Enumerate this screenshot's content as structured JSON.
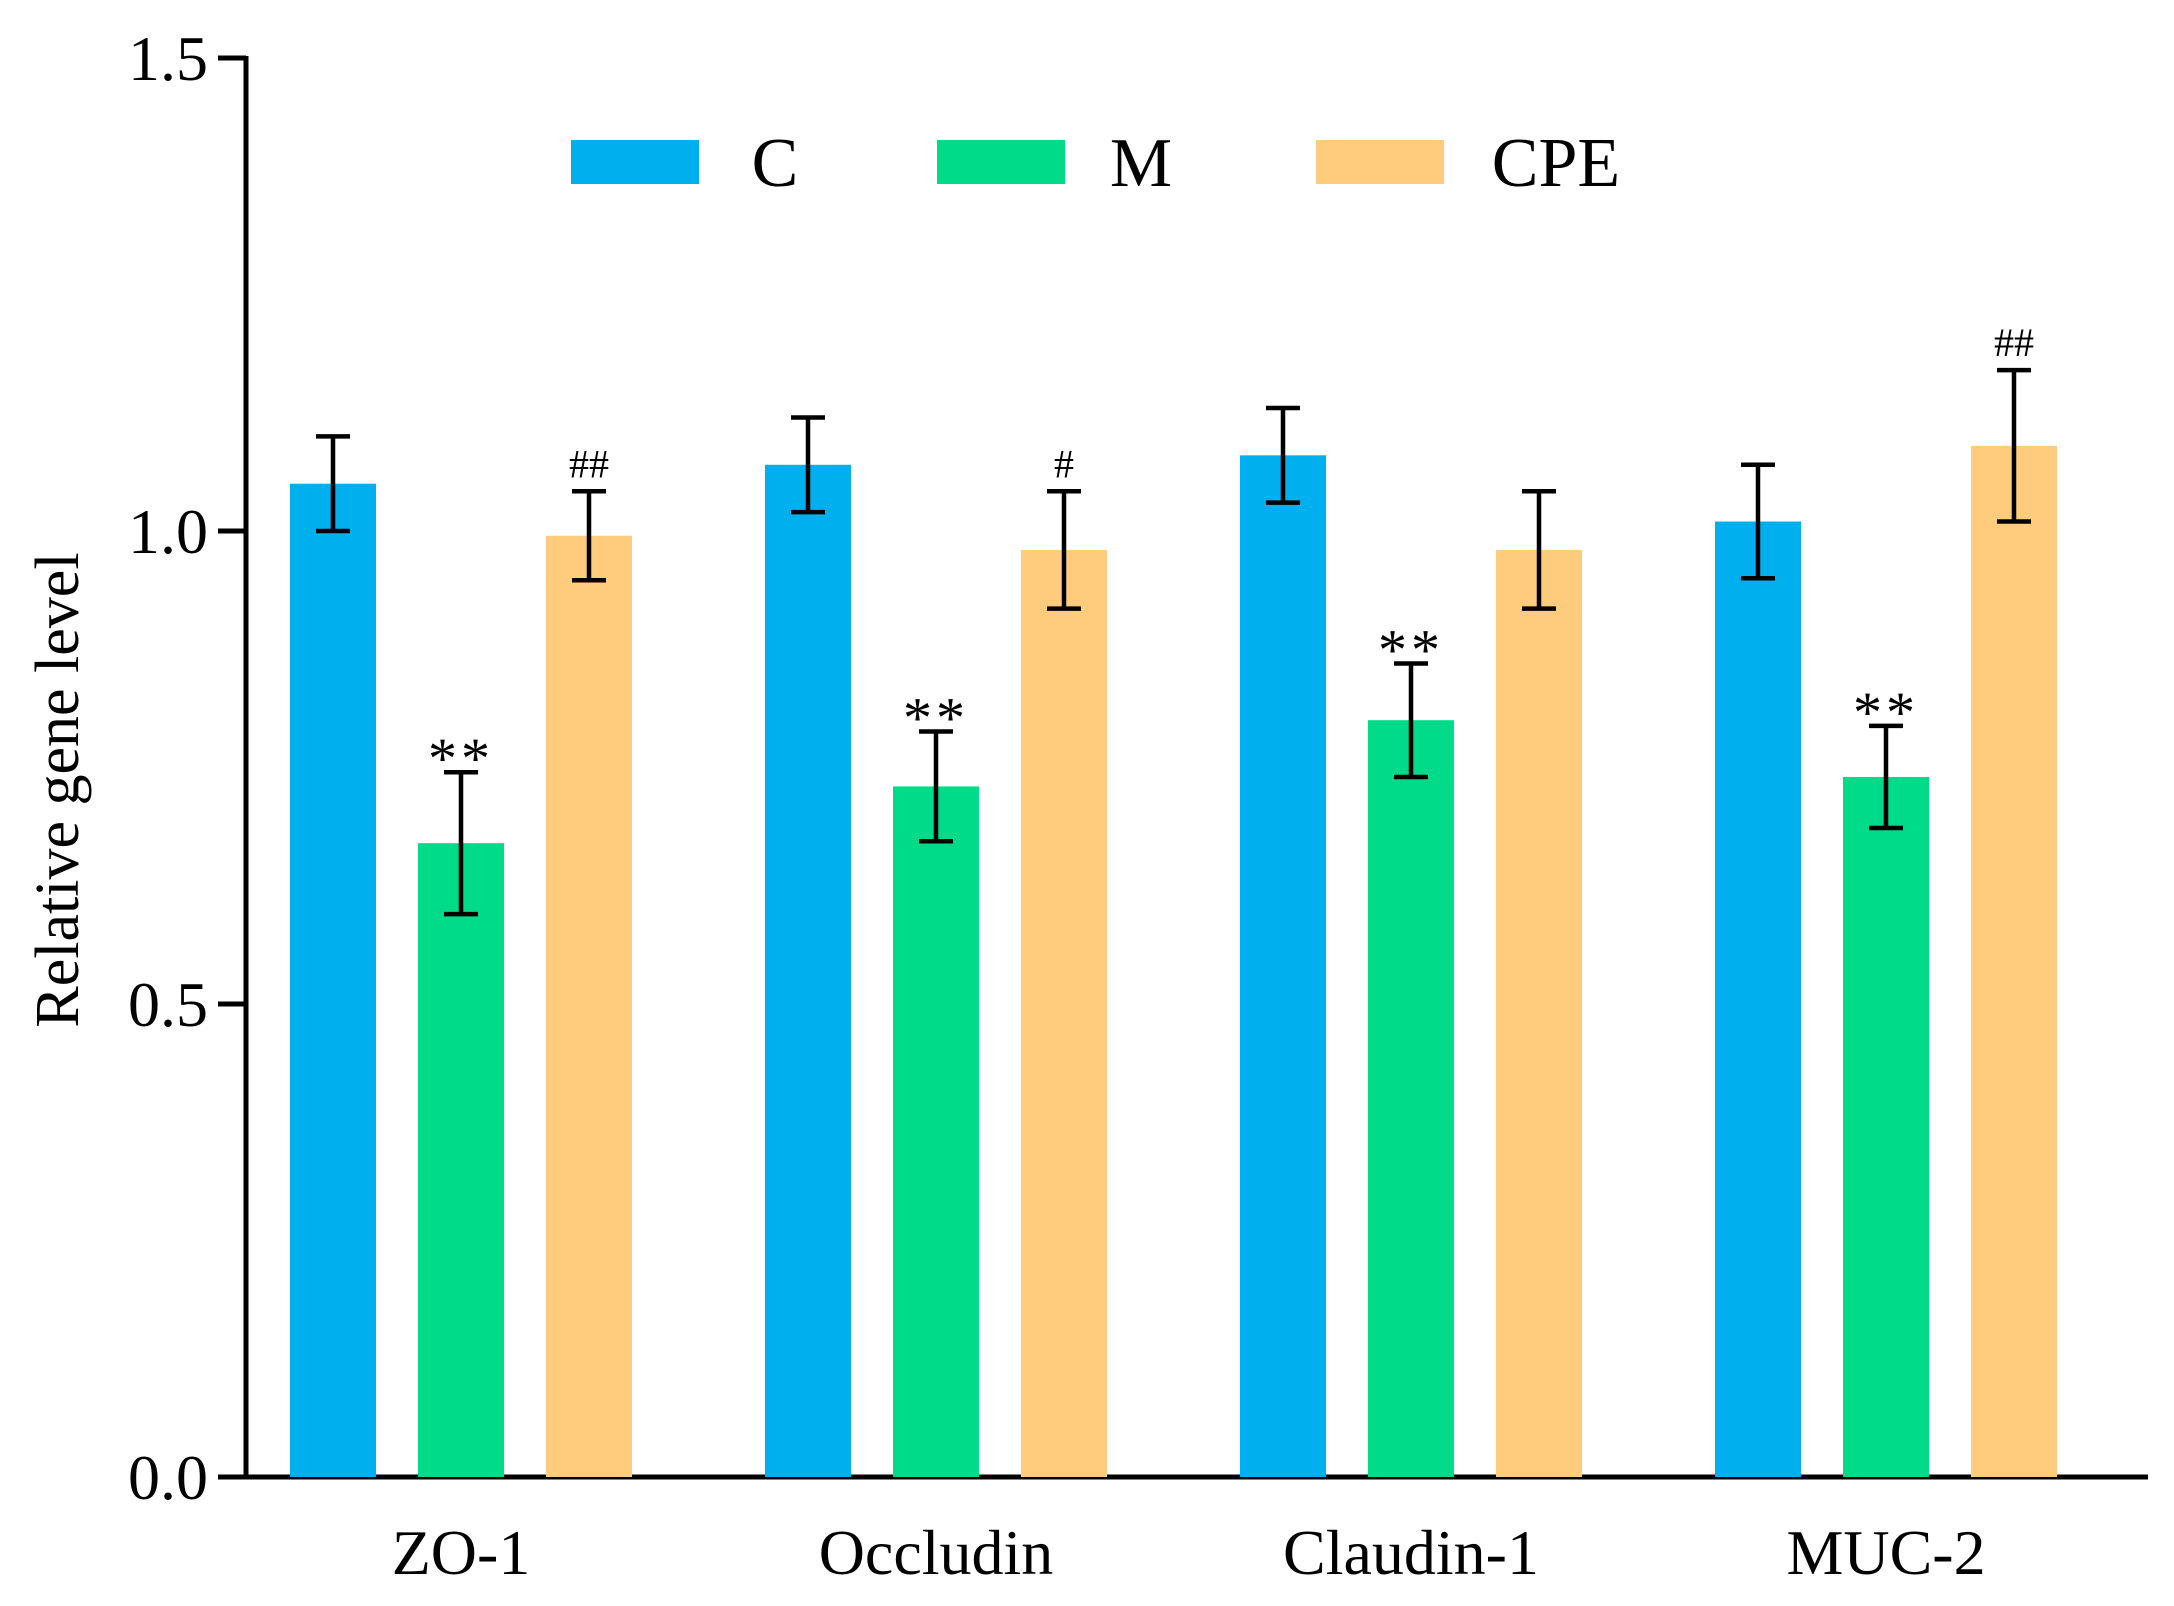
{
  "chart_data": {
    "type": "bar",
    "title": "",
    "xlabel": "",
    "ylabel": "Relative gene level",
    "ylim": [
      0,
      1.5
    ],
    "yticks": [
      "0.0",
      "0.5",
      "1.0",
      "1.5"
    ],
    "grid": false,
    "legend_position": "top-center",
    "categories": [
      "ZO-1",
      "Occludin",
      "Claudin-1",
      "MUC-2"
    ],
    "series": [
      {
        "name": "C",
        "color": "#00B0EE",
        "values": [
          1.05,
          1.07,
          1.08,
          1.01
        ],
        "errors": [
          0.05,
          0.05,
          0.05,
          0.06
        ],
        "annotations": [
          "",
          "",
          "",
          ""
        ]
      },
      {
        "name": "M",
        "color": "#00DB8A",
        "values": [
          0.67,
          0.73,
          0.8,
          0.74
        ],
        "errors": [
          0.075,
          0.058,
          0.06,
          0.054
        ],
        "annotations": [
          "**",
          "**",
          "**",
          "**"
        ]
      },
      {
        "name": "CPE",
        "color": "#FFCC7D",
        "values": [
          0.995,
          0.98,
          0.98,
          1.09
        ],
        "errors": [
          0.047,
          0.062,
          0.062,
          0.08
        ],
        "annotations": [
          "##",
          "#",
          "",
          "##"
        ]
      }
    ]
  }
}
